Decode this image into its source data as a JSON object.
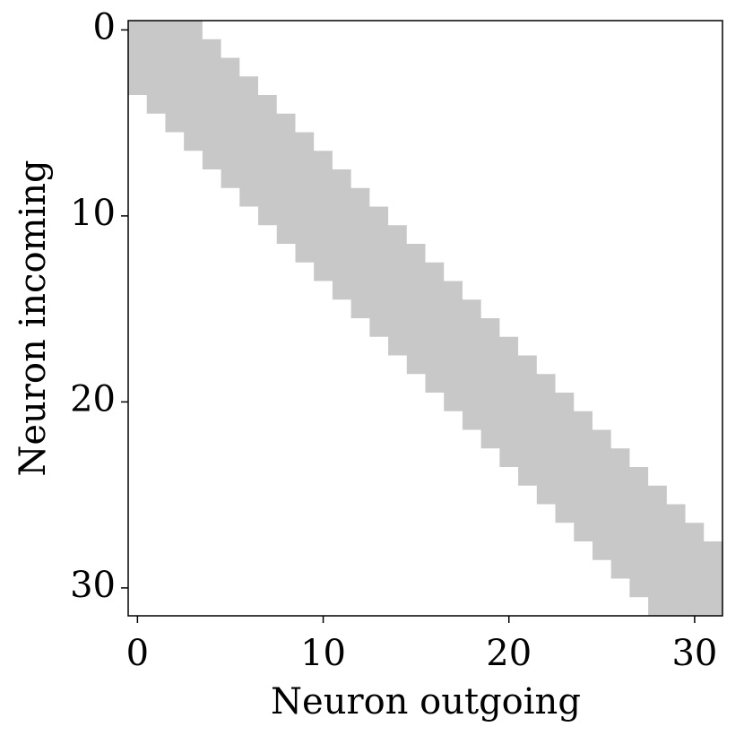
{
  "chart_data": {
    "type": "heatmap",
    "xlabel": "Neuron outgoing",
    "ylabel": "Neuron incoming",
    "xlim": [
      -0.5,
      31.5
    ],
    "ylim": [
      31.5,
      -0.5
    ],
    "xticks": [
      0,
      10,
      20,
      30
    ],
    "yticks": [
      0,
      10,
      20,
      30
    ],
    "colors": [
      "#ffffff",
      "#c8c8c8"
    ],
    "z": [
      [
        1,
        1,
        1,
        1,
        0,
        0,
        0,
        0,
        0,
        0,
        0,
        0,
        0,
        0,
        0,
        0,
        0,
        0,
        0,
        0,
        0,
        0,
        0,
        0,
        0,
        0,
        0,
        0,
        0,
        0,
        0,
        0
      ],
      [
        1,
        1,
        1,
        1,
        1,
        0,
        0,
        0,
        0,
        0,
        0,
        0,
        0,
        0,
        0,
        0,
        0,
        0,
        0,
        0,
        0,
        0,
        0,
        0,
        0,
        0,
        0,
        0,
        0,
        0,
        0,
        0
      ],
      [
        1,
        1,
        1,
        1,
        1,
        1,
        0,
        0,
        0,
        0,
        0,
        0,
        0,
        0,
        0,
        0,
        0,
        0,
        0,
        0,
        0,
        0,
        0,
        0,
        0,
        0,
        0,
        0,
        0,
        0,
        0,
        0
      ],
      [
        1,
        1,
        1,
        1,
        1,
        1,
        1,
        0,
        0,
        0,
        0,
        0,
        0,
        0,
        0,
        0,
        0,
        0,
        0,
        0,
        0,
        0,
        0,
        0,
        0,
        0,
        0,
        0,
        0,
        0,
        0,
        0
      ],
      [
        0,
        1,
        1,
        1,
        1,
        1,
        1,
        1,
        0,
        0,
        0,
        0,
        0,
        0,
        0,
        0,
        0,
        0,
        0,
        0,
        0,
        0,
        0,
        0,
        0,
        0,
        0,
        0,
        0,
        0,
        0,
        0
      ],
      [
        0,
        0,
        1,
        1,
        1,
        1,
        1,
        1,
        1,
        0,
        0,
        0,
        0,
        0,
        0,
        0,
        0,
        0,
        0,
        0,
        0,
        0,
        0,
        0,
        0,
        0,
        0,
        0,
        0,
        0,
        0,
        0
      ],
      [
        0,
        0,
        0,
        1,
        1,
        1,
        1,
        1,
        1,
        1,
        0,
        0,
        0,
        0,
        0,
        0,
        0,
        0,
        0,
        0,
        0,
        0,
        0,
        0,
        0,
        0,
        0,
        0,
        0,
        0,
        0,
        0
      ],
      [
        0,
        0,
        0,
        0,
        1,
        1,
        1,
        1,
        1,
        1,
        1,
        0,
        0,
        0,
        0,
        0,
        0,
        0,
        0,
        0,
        0,
        0,
        0,
        0,
        0,
        0,
        0,
        0,
        0,
        0,
        0,
        0
      ],
      [
        0,
        0,
        0,
        0,
        0,
        1,
        1,
        1,
        1,
        1,
        1,
        1,
        0,
        0,
        0,
        0,
        0,
        0,
        0,
        0,
        0,
        0,
        0,
        0,
        0,
        0,
        0,
        0,
        0,
        0,
        0,
        0
      ],
      [
        0,
        0,
        0,
        0,
        0,
        0,
        1,
        1,
        1,
        1,
        1,
        1,
        1,
        0,
        0,
        0,
        0,
        0,
        0,
        0,
        0,
        0,
        0,
        0,
        0,
        0,
        0,
        0,
        0,
        0,
        0,
        0
      ],
      [
        0,
        0,
        0,
        0,
        0,
        0,
        0,
        1,
        1,
        1,
        1,
        1,
        1,
        1,
        0,
        0,
        0,
        0,
        0,
        0,
        0,
        0,
        0,
        0,
        0,
        0,
        0,
        0,
        0,
        0,
        0,
        0
      ],
      [
        0,
        0,
        0,
        0,
        0,
        0,
        0,
        0,
        1,
        1,
        1,
        1,
        1,
        1,
        1,
        0,
        0,
        0,
        0,
        0,
        0,
        0,
        0,
        0,
        0,
        0,
        0,
        0,
        0,
        0,
        0,
        0
      ],
      [
        0,
        0,
        0,
        0,
        0,
        0,
        0,
        0,
        0,
        1,
        1,
        1,
        1,
        1,
        1,
        1,
        0,
        0,
        0,
        0,
        0,
        0,
        0,
        0,
        0,
        0,
        0,
        0,
        0,
        0,
        0,
        0
      ],
      [
        0,
        0,
        0,
        0,
        0,
        0,
        0,
        0,
        0,
        0,
        1,
        1,
        1,
        1,
        1,
        1,
        1,
        0,
        0,
        0,
        0,
        0,
        0,
        0,
        0,
        0,
        0,
        0,
        0,
        0,
        0,
        0
      ],
      [
        0,
        0,
        0,
        0,
        0,
        0,
        0,
        0,
        0,
        0,
        0,
        1,
        1,
        1,
        1,
        1,
        1,
        1,
        0,
        0,
        0,
        0,
        0,
        0,
        0,
        0,
        0,
        0,
        0,
        0,
        0,
        0
      ],
      [
        0,
        0,
        0,
        0,
        0,
        0,
        0,
        0,
        0,
        0,
        0,
        0,
        1,
        1,
        1,
        1,
        1,
        1,
        1,
        0,
        0,
        0,
        0,
        0,
        0,
        0,
        0,
        0,
        0,
        0,
        0,
        0
      ],
      [
        0,
        0,
        0,
        0,
        0,
        0,
        0,
        0,
        0,
        0,
        0,
        0,
        0,
        1,
        1,
        1,
        1,
        1,
        1,
        1,
        0,
        0,
        0,
        0,
        0,
        0,
        0,
        0,
        0,
        0,
        0,
        0
      ],
      [
        0,
        0,
        0,
        0,
        0,
        0,
        0,
        0,
        0,
        0,
        0,
        0,
        0,
        0,
        1,
        1,
        1,
        1,
        1,
        1,
        1,
        0,
        0,
        0,
        0,
        0,
        0,
        0,
        0,
        0,
        0,
        0
      ],
      [
        0,
        0,
        0,
        0,
        0,
        0,
        0,
        0,
        0,
        0,
        0,
        0,
        0,
        0,
        0,
        1,
        1,
        1,
        1,
        1,
        1,
        1,
        0,
        0,
        0,
        0,
        0,
        0,
        0,
        0,
        0,
        0
      ],
      [
        0,
        0,
        0,
        0,
        0,
        0,
        0,
        0,
        0,
        0,
        0,
        0,
        0,
        0,
        0,
        0,
        1,
        1,
        1,
        1,
        1,
        1,
        1,
        0,
        0,
        0,
        0,
        0,
        0,
        0,
        0,
        0
      ],
      [
        0,
        0,
        0,
        0,
        0,
        0,
        0,
        0,
        0,
        0,
        0,
        0,
        0,
        0,
        0,
        0,
        0,
        1,
        1,
        1,
        1,
        1,
        1,
        1,
        0,
        0,
        0,
        0,
        0,
        0,
        0,
        0
      ],
      [
        0,
        0,
        0,
        0,
        0,
        0,
        0,
        0,
        0,
        0,
        0,
        0,
        0,
        0,
        0,
        0,
        0,
        0,
        1,
        1,
        1,
        1,
        1,
        1,
        1,
        0,
        0,
        0,
        0,
        0,
        0,
        0
      ],
      [
        0,
        0,
        0,
        0,
        0,
        0,
        0,
        0,
        0,
        0,
        0,
        0,
        0,
        0,
        0,
        0,
        0,
        0,
        0,
        1,
        1,
        1,
        1,
        1,
        1,
        1,
        0,
        0,
        0,
        0,
        0,
        0
      ],
      [
        0,
        0,
        0,
        0,
        0,
        0,
        0,
        0,
        0,
        0,
        0,
        0,
        0,
        0,
        0,
        0,
        0,
        0,
        0,
        0,
        1,
        1,
        1,
        1,
        1,
        1,
        1,
        0,
        0,
        0,
        0,
        0
      ],
      [
        0,
        0,
        0,
        0,
        0,
        0,
        0,
        0,
        0,
        0,
        0,
        0,
        0,
        0,
        0,
        0,
        0,
        0,
        0,
        0,
        0,
        1,
        1,
        1,
        1,
        1,
        1,
        1,
        0,
        0,
        0,
        0
      ],
      [
        0,
        0,
        0,
        0,
        0,
        0,
        0,
        0,
        0,
        0,
        0,
        0,
        0,
        0,
        0,
        0,
        0,
        0,
        0,
        0,
        0,
        0,
        1,
        1,
        1,
        1,
        1,
        1,
        1,
        0,
        0,
        0
      ],
      [
        0,
        0,
        0,
        0,
        0,
        0,
        0,
        0,
        0,
        0,
        0,
        0,
        0,
        0,
        0,
        0,
        0,
        0,
        0,
        0,
        0,
        0,
        0,
        1,
        1,
        1,
        1,
        1,
        1,
        1,
        0,
        0
      ],
      [
        0,
        0,
        0,
        0,
        0,
        0,
        0,
        0,
        0,
        0,
        0,
        0,
        0,
        0,
        0,
        0,
        0,
        0,
        0,
        0,
        0,
        0,
        0,
        0,
        1,
        1,
        1,
        1,
        1,
        1,
        1,
        0
      ],
      [
        0,
        0,
        0,
        0,
        0,
        0,
        0,
        0,
        0,
        0,
        0,
        0,
        0,
        0,
        0,
        0,
        0,
        0,
        0,
        0,
        0,
        0,
        0,
        0,
        0,
        1,
        1,
        1,
        1,
        1,
        1,
        1
      ],
      [
        0,
        0,
        0,
        0,
        0,
        0,
        0,
        0,
        0,
        0,
        0,
        0,
        0,
        0,
        0,
        0,
        0,
        0,
        0,
        0,
        0,
        0,
        0,
        0,
        0,
        0,
        1,
        1,
        1,
        1,
        1,
        1
      ],
      [
        0,
        0,
        0,
        0,
        0,
        0,
        0,
        0,
        0,
        0,
        0,
        0,
        0,
        0,
        0,
        0,
        0,
        0,
        0,
        0,
        0,
        0,
        0,
        0,
        0,
        0,
        0,
        1,
        1,
        1,
        1,
        1
      ],
      [
        0,
        0,
        0,
        0,
        0,
        0,
        0,
        0,
        0,
        0,
        0,
        0,
        0,
        0,
        0,
        0,
        0,
        0,
        0,
        0,
        0,
        0,
        0,
        0,
        0,
        0,
        0,
        0,
        1,
        1,
        1,
        1
      ]
    ]
  }
}
